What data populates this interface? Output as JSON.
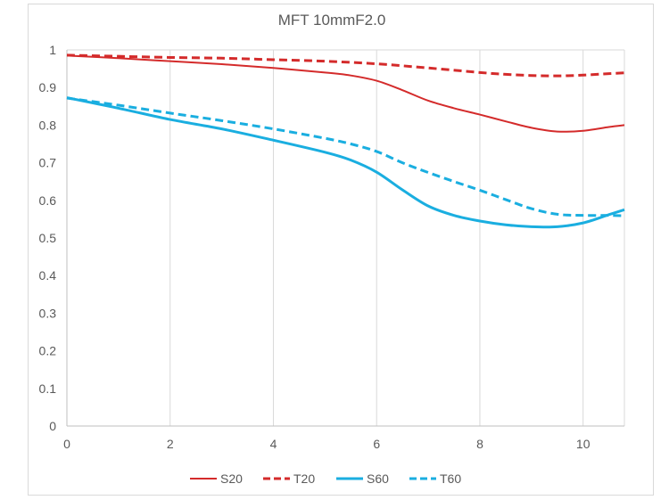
{
  "chart_data": {
    "type": "line",
    "title": "MFT  10mmF2.0",
    "xlabel": "",
    "ylabel": "",
    "xlim": [
      0,
      10.8
    ],
    "ylim": [
      0,
      1
    ],
    "x_ticks": [
      0,
      2,
      4,
      6,
      8,
      10
    ],
    "x_tick_labels": [
      "0",
      "2",
      "4",
      "6",
      "8",
      "10"
    ],
    "y_ticks": [
      0,
      0.1,
      0.2,
      0.3,
      0.4,
      0.5,
      0.6,
      0.7,
      0.8,
      0.9,
      1
    ],
    "y_tick_labels": [
      "0",
      "0.1",
      "0.2",
      "0.3",
      "0.4",
      "0.5",
      "0.6",
      "0.7",
      "0.8",
      "0.9",
      "1"
    ],
    "grid": "vertical",
    "legend_position": "bottom",
    "series": [
      {
        "name": "S20",
        "color": "#d42b2b",
        "dash": "solid",
        "x": [
          0,
          1,
          2,
          3,
          4,
          5,
          5.5,
          6,
          6.5,
          7,
          7.5,
          8,
          8.5,
          9,
          9.5,
          10,
          10.5,
          10.8
        ],
        "values": [
          0.985,
          0.978,
          0.97,
          0.962,
          0.952,
          0.94,
          0.932,
          0.918,
          0.893,
          0.865,
          0.845,
          0.828,
          0.81,
          0.793,
          0.783,
          0.785,
          0.795,
          0.8
        ]
      },
      {
        "name": "T20",
        "color": "#d42b2b",
        "dash": "dashed",
        "x": [
          0,
          1,
          2,
          3,
          4,
          5,
          6,
          7,
          8,
          8.5,
          9,
          9.5,
          10,
          10.5,
          10.8
        ],
        "values": [
          0.986,
          0.983,
          0.98,
          0.978,
          0.974,
          0.97,
          0.963,
          0.952,
          0.94,
          0.935,
          0.932,
          0.931,
          0.933,
          0.937,
          0.939
        ]
      },
      {
        "name": "S60",
        "color": "#1aaee0",
        "dash": "solid",
        "x": [
          0,
          1,
          2,
          3,
          4,
          5,
          5.5,
          6,
          6.5,
          7,
          7.5,
          8,
          8.5,
          9,
          9.5,
          10,
          10.5,
          10.8
        ],
        "values": [
          0.873,
          0.845,
          0.815,
          0.79,
          0.76,
          0.728,
          0.707,
          0.675,
          0.628,
          0.585,
          0.56,
          0.545,
          0.535,
          0.53,
          0.53,
          0.54,
          0.562,
          0.575
        ]
      },
      {
        "name": "T60",
        "color": "#1aaee0",
        "dash": "dashed",
        "x": [
          0,
          1,
          2,
          3,
          4,
          5,
          5.5,
          6,
          6.5,
          7,
          7.5,
          8,
          8.5,
          9,
          9.5,
          10,
          10.5,
          10.8
        ],
        "values": [
          0.872,
          0.853,
          0.832,
          0.812,
          0.79,
          0.765,
          0.75,
          0.73,
          0.7,
          0.674,
          0.65,
          0.627,
          0.602,
          0.578,
          0.563,
          0.56,
          0.56,
          0.559
        ]
      }
    ]
  }
}
